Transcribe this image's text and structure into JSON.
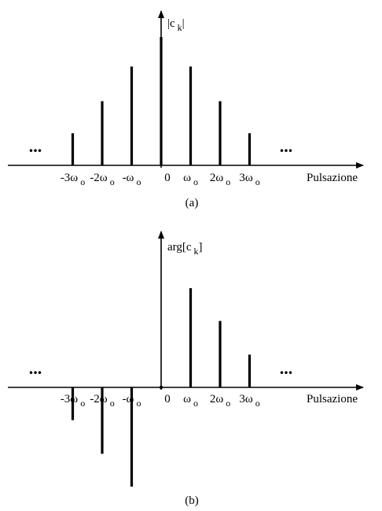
{
  "chart_data": [
    {
      "type": "bar",
      "panel": "(a)",
      "ylabel_parts": [
        "|c",
        "k",
        "|"
      ],
      "xlabel": "Pulsazione",
      "ellipsis": "...",
      "ticks": [
        {
          "k": -3,
          "parts": [
            "-3ω",
            "o"
          ]
        },
        {
          "k": -2,
          "parts": [
            "-2ω",
            "o"
          ]
        },
        {
          "k": -1,
          "parts": [
            "-ω",
            "o"
          ]
        },
        {
          "k": 0,
          "parts": [
            "0",
            ""
          ]
        },
        {
          "k": 1,
          "parts": [
            "ω",
            "o"
          ]
        },
        {
          "k": 2,
          "parts": [
            "2ω",
            "o"
          ]
        },
        {
          "k": 3,
          "parts": [
            "3ω",
            "o"
          ]
        }
      ],
      "stems": [
        {
          "k": -3,
          "value": 0.25
        },
        {
          "k": -2,
          "value": 0.5
        },
        {
          "k": -1,
          "value": 0.77
        },
        {
          "k": 0,
          "value": 1.0
        },
        {
          "k": 1,
          "value": 0.77
        },
        {
          "k": 2,
          "value": 0.5
        },
        {
          "k": 3,
          "value": 0.25
        }
      ]
    },
    {
      "type": "bar",
      "panel": "(b)",
      "ylabel_parts": [
        "arg[c",
        "k",
        "]"
      ],
      "xlabel": "Pulsazione",
      "ellipsis": "...",
      "ticks": [
        {
          "k": -3,
          "parts": [
            "-3ω",
            "o"
          ]
        },
        {
          "k": -2,
          "parts": [
            "-2ω",
            "o"
          ]
        },
        {
          "k": -1,
          "parts": [
            "-ω",
            "o"
          ]
        },
        {
          "k": 0,
          "parts": [
            "0",
            ""
          ]
        },
        {
          "k": 1,
          "parts": [
            "ω",
            "o"
          ]
        },
        {
          "k": 2,
          "parts": [
            "2ω",
            "o"
          ]
        },
        {
          "k": 3,
          "parts": [
            "3ω",
            "o"
          ]
        }
      ],
      "stems": [
        {
          "k": -3,
          "value": -0.33
        },
        {
          "k": -2,
          "value": -0.67
        },
        {
          "k": -1,
          "value": -1.0
        },
        {
          "k": 0,
          "value": 0
        },
        {
          "k": 1,
          "value": 1.0
        },
        {
          "k": 2,
          "value": 0.67
        },
        {
          "k": 3,
          "value": 0.33
        }
      ]
    }
  ]
}
